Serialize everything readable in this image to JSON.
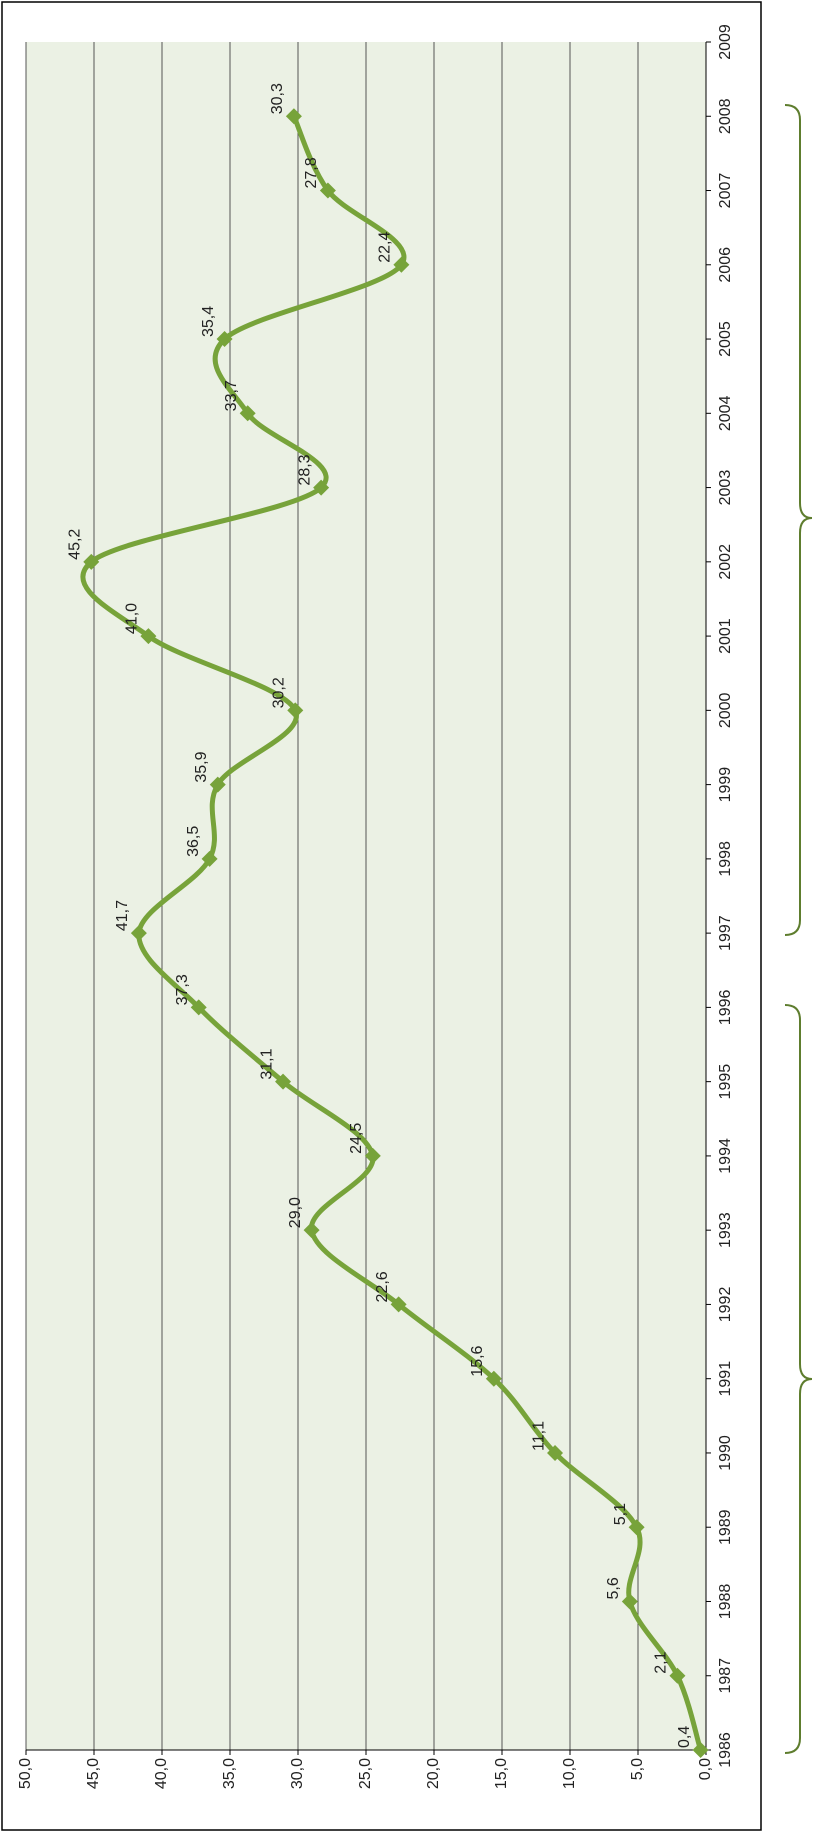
{
  "chart_data": {
    "type": "line",
    "x": [
      1986,
      1987,
      1988,
      1989,
      1990,
      1991,
      1992,
      1993,
      1994,
      1995,
      1996,
      1997,
      1998,
      1999,
      2000,
      2001,
      2002,
      2003,
      2004,
      2005,
      2006,
      2007,
      2008
    ],
    "values": [
      0.4,
      2.1,
      5.6,
      5.1,
      11.1,
      15.6,
      22.6,
      29.0,
      24.5,
      31.1,
      37.3,
      41.7,
      36.5,
      35.9,
      30.2,
      41.0,
      45.2,
      28.3,
      33.7,
      35.4,
      22.4,
      27.8,
      30.3
    ],
    "value_labels": [
      "0,4",
      "2,1",
      "5,6",
      "5,1",
      "11,1",
      "15,6",
      "22,6",
      "29,0",
      "24,5",
      "31,1",
      "37,3",
      "41,7",
      "36,5",
      "35,9",
      "30,2",
      "41,0",
      "45,2",
      "28,3",
      "33,7",
      "35,4",
      "22,4",
      "27,8",
      "30,3"
    ],
    "color": "#77a33a",
    "xlim": [
      1986,
      2009
    ],
    "xticks": [
      1986,
      1987,
      1988,
      1989,
      1990,
      1991,
      1992,
      1993,
      1994,
      1995,
      1996,
      1997,
      1998,
      1999,
      2000,
      2001,
      2002,
      2003,
      2004,
      2005,
      2006,
      2007,
      2008,
      2009
    ],
    "ylim": [
      0,
      50
    ],
    "yticks": [
      {
        "value": 0,
        "label": "0,0"
      },
      {
        "value": 5,
        "label": "5,0"
      },
      {
        "value": 10,
        "label": "10,0"
      },
      {
        "value": 15,
        "label": "15,0"
      },
      {
        "value": 20,
        "label": "20,0"
      },
      {
        "value": 25,
        "label": "25,0"
      },
      {
        "value": 30,
        "label": "30,0"
      },
      {
        "value": 35,
        "label": "35,0"
      },
      {
        "value": 40,
        "label": "40,0"
      },
      {
        "value": 45,
        "label": "45,0"
      },
      {
        "value": 50,
        "label": "50,0"
      }
    ],
    "grid": true
  }
}
